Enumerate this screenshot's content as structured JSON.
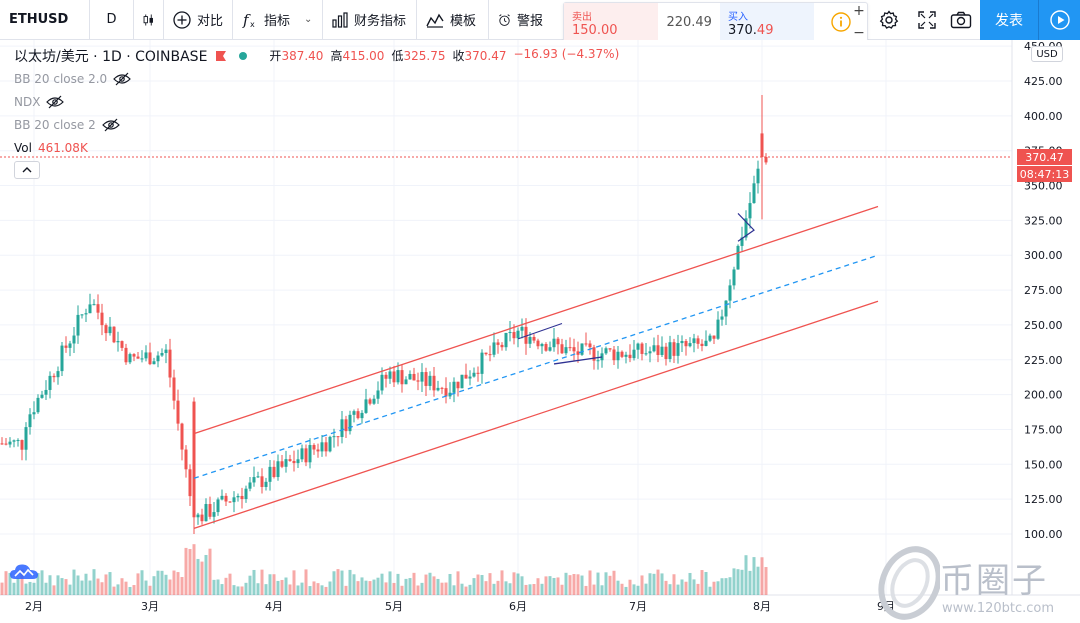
{
  "toolbar": {
    "symbol": "ETHUSD",
    "interval": "D",
    "compare_label": "对比",
    "indicators_label": "指标",
    "financials_label": "财务指标",
    "templates_label": "模板",
    "alert_label": "警报",
    "publish_label": "发表"
  },
  "trade": {
    "sell_label": "卖出",
    "sell_price": "150.00",
    "spread": "220.49",
    "buy_label": "买入",
    "buy_price_int": "370.",
    "buy_price_dec": "49"
  },
  "legend": {
    "title": "以太坊/美元 · 1D · COINBASE",
    "open_label": "开",
    "open": "387.40",
    "high_label": "高",
    "high": "415.00",
    "low_label": "低",
    "low": "325.75",
    "close_label": "收",
    "close": "370.47",
    "change": "−16.93 (−4.37%)",
    "indicators": [
      "BB 20 close 2.0",
      "NDX",
      "BB 20 close 2"
    ],
    "vol_label": "Vol",
    "vol_value": "461.08K"
  },
  "price_axis": {
    "currency": "USD",
    "ticks": [
      "450.00",
      "425.00",
      "400.00",
      "375.00",
      "350.00",
      "325.00",
      "300.00",
      "275.00",
      "250.00",
      "225.00",
      "200.00",
      "175.00",
      "150.00",
      "125.00",
      "100.00"
    ],
    "last_price": "370.47",
    "countdown": "08:47:13"
  },
  "time_axis": {
    "labels": [
      "2月",
      "3月",
      "4月",
      "5月",
      "6月",
      "7月",
      "8月",
      "9月"
    ]
  },
  "watermark": {
    "name": "币圈子",
    "url": "www.120btc.com"
  },
  "colors": {
    "up": "#26a69a",
    "down": "#ef5350",
    "channel": "#ef5350",
    "midline": "#2196f3",
    "accent": "#2196f3"
  },
  "chart_data": {
    "type": "candlestick",
    "symbol": "ETHUSD",
    "timeframe": "1D",
    "ylim": [
      90,
      455
    ],
    "ohlc_sample": [
      [
        "2020-01-30",
        170,
        184,
        168,
        182
      ],
      [
        "2020-02-05",
        190,
        215,
        188,
        212
      ],
      [
        "2020-02-15",
        260,
        288,
        250,
        268
      ],
      [
        "2020-02-25",
        260,
        268,
        220,
        225
      ],
      [
        "2020-03-05",
        240,
        252,
        225,
        230
      ],
      [
        "2020-03-12",
        195,
        198,
        100,
        110
      ],
      [
        "2020-03-25",
        135,
        140,
        125,
        132
      ],
      [
        "2020-04-15",
        160,
        175,
        150,
        168
      ],
      [
        "2020-04-30",
        210,
        227,
        195,
        215
      ],
      [
        "2020-05-15",
        200,
        210,
        190,
        205
      ],
      [
        "2020-06-01",
        230,
        255,
        230,
        245
      ],
      [
        "2020-06-15",
        235,
        240,
        215,
        230
      ],
      [
        "2020-07-01",
        228,
        235,
        222,
        230
      ],
      [
        "2020-07-20",
        238,
        240,
        232,
        236
      ],
      [
        "2020-07-26",
        270,
        310,
        268,
        305
      ],
      [
        "2020-08-01",
        387.4,
        415,
        325.75,
        370.47
      ]
    ],
    "channel": {
      "upper": [
        [
          "2020-03-12",
          172
        ],
        [
          "2020-08-30",
          335
        ]
      ],
      "middle": [
        [
          "2020-03-12",
          140
        ],
        [
          "2020-08-30",
          300
        ]
      ],
      "lower": [
        [
          "2020-03-12",
          104
        ],
        [
          "2020-08-30",
          267
        ]
      ]
    }
  }
}
